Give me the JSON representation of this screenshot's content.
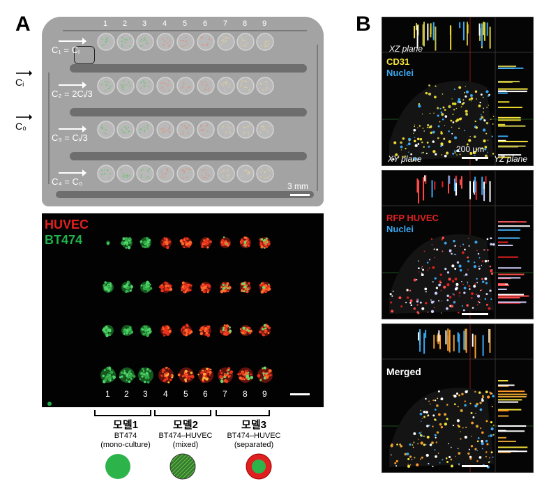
{
  "panels": {
    "a_label": "A",
    "b_label": "B"
  },
  "chip": {
    "column_numbers": [
      "1",
      "2",
      "3",
      "4",
      "5",
      "6",
      "7",
      "8",
      "9"
    ],
    "row_labels": [
      "C₁ = Cᵢ",
      "C₂ = 2Cᵢ/3",
      "C₃ = Cᵢ/3",
      "C₄ = C₀"
    ],
    "side_inputs": [
      "Cᵢ",
      "C₀"
    ],
    "scale_bar": "3 mm"
  },
  "fluorescence": {
    "legend": [
      "HUVEC",
      "BT474"
    ],
    "column_numbers": [
      "1",
      "2",
      "3",
      "4",
      "5",
      "6",
      "7",
      "8",
      "9"
    ],
    "colors": {
      "huvec": "#e02020",
      "bt474": "#22b14c"
    }
  },
  "models": [
    {
      "name": "모델1",
      "line1": "BT474",
      "line2": "(mono-culture)"
    },
    {
      "name": "모델2",
      "line1": "BT474–HUVEC",
      "line2": "(mixed)"
    },
    {
      "name": "모델3",
      "line1": "BT474–HUVEC",
      "line2": "(separated)"
    }
  ],
  "confocal": {
    "top": {
      "xz": "XZ plane",
      "stain1": "CD31",
      "stain2": "Nuclei",
      "xy": "XY plane",
      "yz": "YZ plane",
      "scale": "200 μm"
    },
    "middle": {
      "stain1": "RFP HUVEC",
      "stain2": "Nuclei"
    },
    "bottom": {
      "label": "Merged"
    }
  }
}
